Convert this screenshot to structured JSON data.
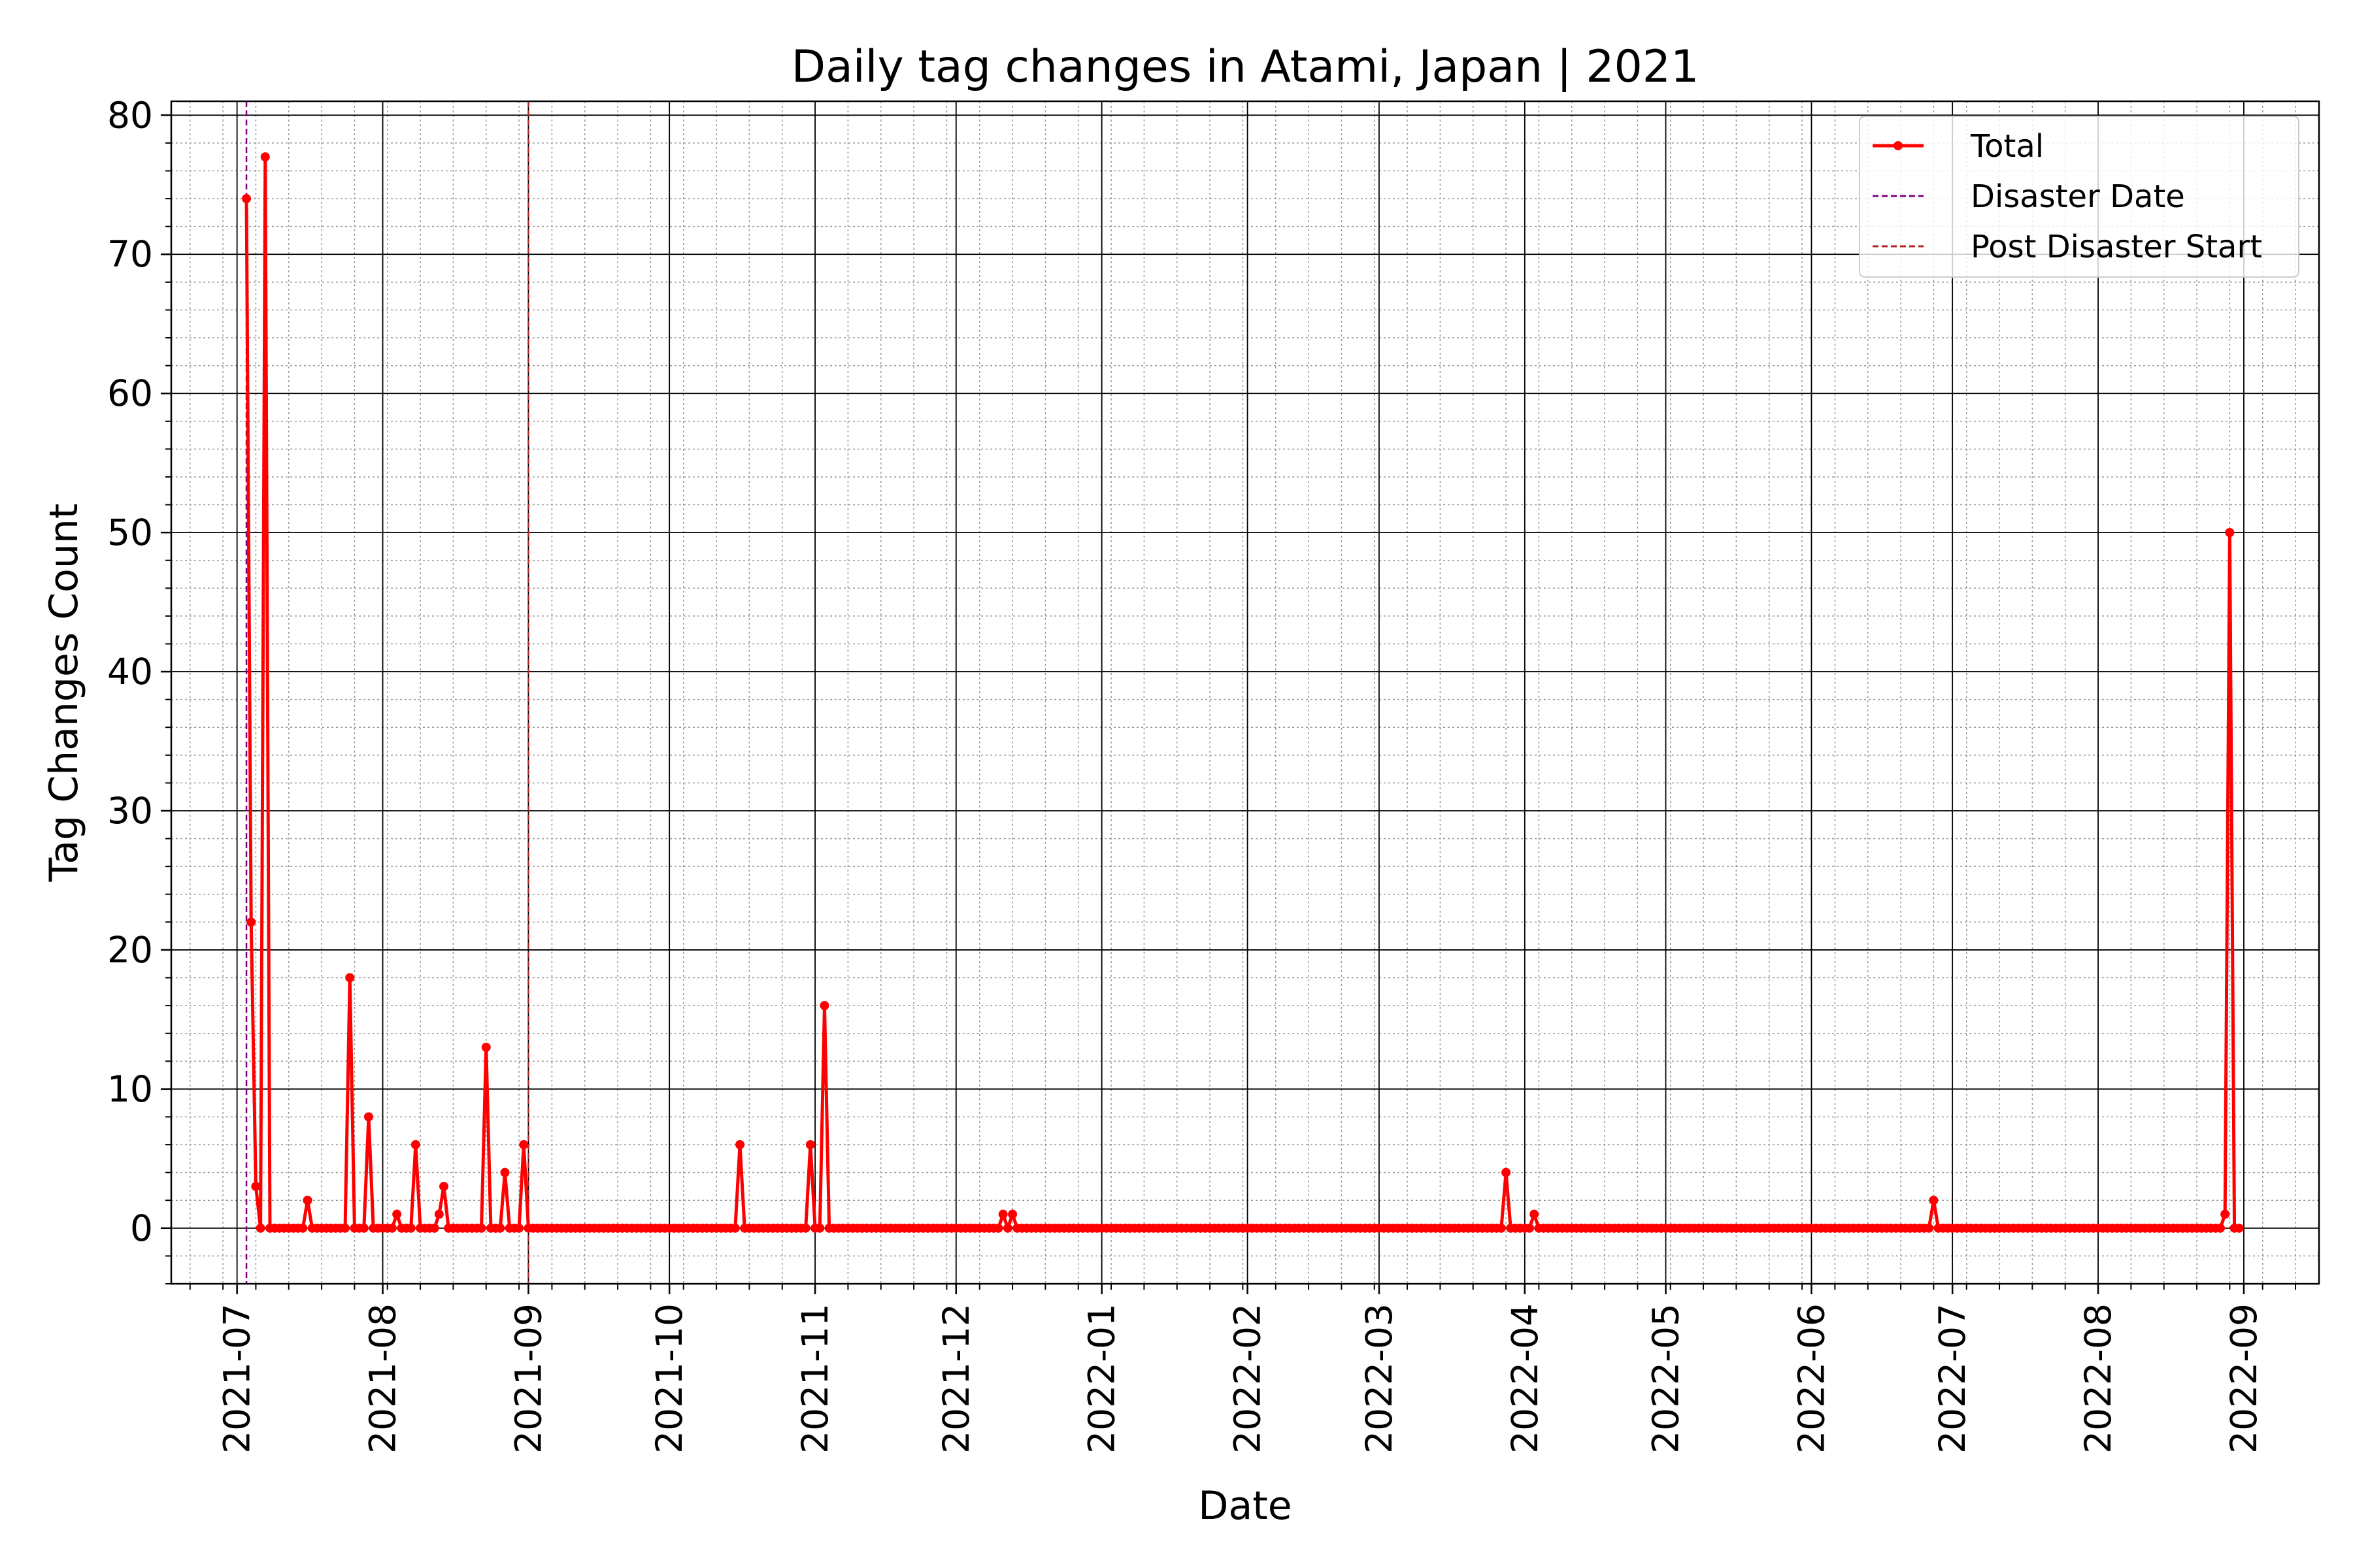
{
  "chart_data": {
    "type": "line",
    "title": "Daily tag changes in Atami, Japan | 2021",
    "xlabel": "Date",
    "ylabel": "Tag Changes Count",
    "x_range": [
      "2021-06-17",
      "2022-09-17"
    ],
    "ylim": [
      -4,
      81
    ],
    "y_ticks": [
      0,
      10,
      20,
      30,
      40,
      50,
      60,
      70,
      80
    ],
    "x_ticks": [
      "2021-07",
      "2021-08",
      "2021-09",
      "2021-10",
      "2021-11",
      "2021-12",
      "2022-01",
      "2022-02",
      "2022-03",
      "2022-04",
      "2022-05",
      "2022-06",
      "2022-07",
      "2022-08",
      "2022-09"
    ],
    "grid": "major and minor",
    "legend_position": "upper right",
    "series": [
      {
        "name": "Total",
        "color": "#ff0000",
        "range": [
          "2021-07-03",
          "2022-08-31"
        ],
        "default_value": 0,
        "points": [
          [
            "2021-07-03",
            74
          ],
          [
            "2021-07-04",
            22
          ],
          [
            "2021-07-05",
            3
          ],
          [
            "2021-07-06",
            0
          ],
          [
            "2021-07-07",
            77
          ],
          [
            "2021-07-08",
            0
          ],
          [
            "2021-07-16",
            2
          ],
          [
            "2021-07-25",
            18
          ],
          [
            "2021-07-29",
            8
          ],
          [
            "2021-08-04",
            1
          ],
          [
            "2021-08-08",
            6
          ],
          [
            "2021-08-13",
            1
          ],
          [
            "2021-08-14",
            3
          ],
          [
            "2021-08-23",
            13
          ],
          [
            "2021-08-27",
            4
          ],
          [
            "2021-08-31",
            6
          ],
          [
            "2021-10-16",
            6
          ],
          [
            "2021-10-31",
            6
          ],
          [
            "2021-11-03",
            16
          ],
          [
            "2021-12-11",
            1
          ],
          [
            "2021-12-13",
            1
          ],
          [
            "2022-03-28",
            4
          ],
          [
            "2022-04-03",
            1
          ],
          [
            "2022-06-27",
            2
          ],
          [
            "2022-08-28",
            1
          ],
          [
            "2022-08-29",
            50
          ]
        ]
      }
    ],
    "vlines": [
      {
        "name": "Disaster Date",
        "date": "2021-07-03",
        "color": "#800080"
      },
      {
        "name": "Post Disaster Start",
        "date": "2021-09-01",
        "color": "#b22222"
      }
    ]
  }
}
